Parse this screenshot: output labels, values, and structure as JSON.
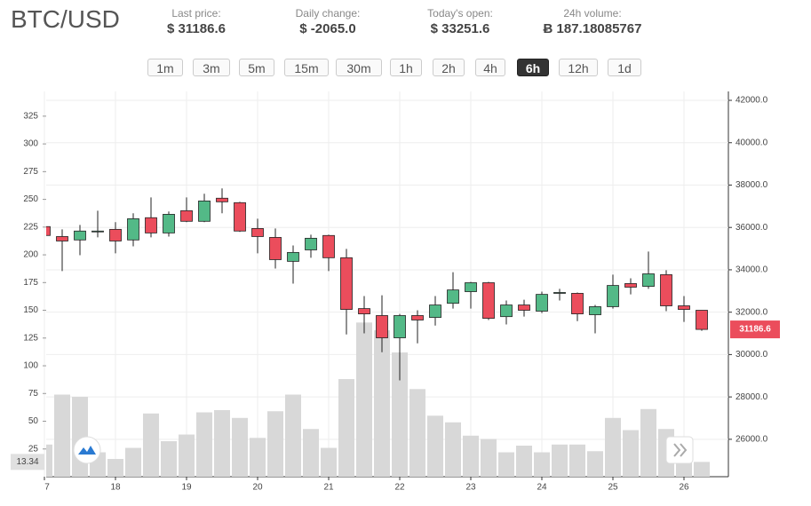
{
  "header": {
    "title": "BTC/USD",
    "stats": [
      {
        "label": "Last price:",
        "value": "$ 31186.6"
      },
      {
        "label": "Daily change:",
        "value": "$ -2065.0"
      },
      {
        "label": "Today's open:",
        "value": "$ 33251.6"
      },
      {
        "label": "24h volume:",
        "value": "Ƀ 187.18085767"
      }
    ]
  },
  "timeframes": {
    "options": [
      "1m",
      "3m",
      "5m",
      "15m",
      "30m",
      "1h",
      "2h",
      "4h",
      "6h",
      "12h",
      "1d"
    ],
    "active": 8
  },
  "chart_data": {
    "type": "candlestick",
    "categories": [
      "7",
      null,
      null,
      null,
      "18",
      null,
      null,
      null,
      "19",
      null,
      null,
      null,
      "20",
      null,
      null,
      null,
      "21",
      null,
      null,
      null,
      "22",
      null,
      null,
      null,
      "23",
      null,
      null,
      null,
      "24",
      null,
      null,
      null,
      "25",
      null,
      null,
      null,
      "26",
      null
    ],
    "open": [
      36040,
      35570,
      35410,
      35830,
      35910,
      35410,
      36460,
      35740,
      36790,
      36290,
      37380,
      37170,
      35950,
      35530,
      34400,
      34940,
      35620,
      34570,
      32170,
      31840,
      30790,
      31840,
      31750,
      32420,
      32970,
      33390,
      31790,
      32340,
      32050,
      32930,
      32890,
      31880,
      32260,
      33350,
      33220,
      33770,
      32300,
      32090
    ],
    "high": [
      36080,
      35910,
      36120,
      36790,
      36250,
      36670,
      37420,
      36750,
      37420,
      37590,
      37840,
      37210,
      36410,
      35950,
      35150,
      35660,
      35660,
      34990,
      32760,
      32800,
      31920,
      32090,
      32760,
      33890,
      33430,
      33430,
      32550,
      32590,
      32970,
      33100,
      32930,
      32340,
      33770,
      33600,
      34860,
      33980,
      32760,
      32090
    ],
    "low": [
      35600,
      33940,
      34690,
      35530,
      34780,
      35110,
      35530,
      35570,
      36250,
      36250,
      36670,
      35790,
      34780,
      34060,
      33350,
      34570,
      33940,
      30950,
      31000,
      30110,
      28780,
      30530,
      31370,
      32170,
      32170,
      31630,
      31420,
      31790,
      31960,
      32550,
      31580,
      31000,
      32170,
      32840,
      33100,
      32050,
      31540,
      31120
    ],
    "close": [
      35620,
      35360,
      35830,
      35830,
      35360,
      36410,
      35740,
      36620,
      36290,
      37250,
      37210,
      35830,
      35570,
      34480,
      34820,
      35490,
      34570,
      32130,
      31920,
      30790,
      31840,
      31630,
      32340,
      33050,
      33390,
      31710,
      32340,
      32090,
      32840,
      32930,
      31920,
      32260,
      33260,
      33180,
      33810,
      32300,
      32130,
      31186.6
    ],
    "volume": [
      29,
      74,
      72,
      22,
      16,
      26,
      57,
      32,
      38,
      58,
      60,
      53,
      35,
      59,
      74,
      43,
      26,
      88,
      139,
      132,
      112,
      79,
      55,
      49,
      37,
      34,
      22,
      28,
      22,
      29,
      29,
      23,
      53,
      42,
      61,
      43,
      28,
      13.34
    ],
    "up_color": "#53b987",
    "down_color": "#eb4d5c",
    "volume_color": "#d8d8d8",
    "ylim": [
      0,
      347.3
    ],
    "yticks": [
      25,
      50,
      75,
      100,
      125,
      150,
      175,
      200,
      225,
      250,
      275,
      300,
      325
    ],
    "y2lim": [
      24234,
      42420
    ],
    "y2ticks": [
      {
        "value": 26000,
        "label": "26000.0"
      },
      {
        "value": 28000,
        "label": "28000.0"
      },
      {
        "value": 30000,
        "label": "30000.0"
      },
      {
        "value": 32000,
        "label": "32000.0"
      },
      {
        "value": 34000,
        "label": "34000.0"
      },
      {
        "value": 36000,
        "label": "36000.0"
      },
      {
        "value": 38000,
        "label": "38000.0"
      },
      {
        "value": 40000,
        "label": "40000.0"
      },
      {
        "value": 42000,
        "label": "42000.0"
      }
    ],
    "last_price": 31186.6,
    "last_volume": 13.34,
    "grid": true
  }
}
